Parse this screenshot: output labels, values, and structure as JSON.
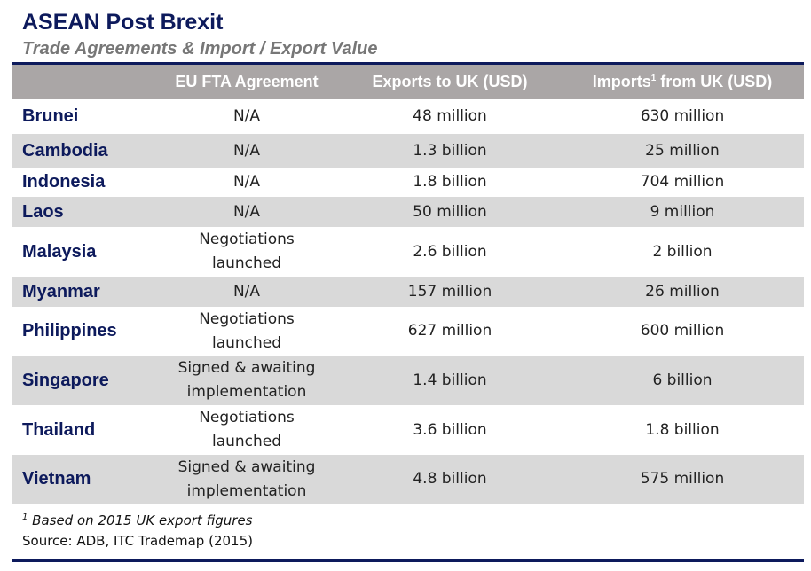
{
  "title": "ASEAN Post Brexit",
  "subtitle": "Trade Agreements & Import / Export Value",
  "columns": {
    "country": "",
    "fta": "EU FTA Agreement",
    "exports": "Exports to UK (USD)",
    "imports_pre": "Imports",
    "imports_sup": "1",
    "imports_post": " from UK (USD)"
  },
  "rows": [
    {
      "country": "Brunei",
      "fta": "N/A",
      "exports": "48 million",
      "imports": "630 million"
    },
    {
      "country": "Cambodia",
      "fta": "N/A",
      "exports": "1.3 billion",
      "imports": "25 million"
    },
    {
      "country": "Indonesia",
      "fta": "N/A",
      "exports": "1.8 billion",
      "imports": "704 million"
    },
    {
      "country": "Laos",
      "fta": "N/A",
      "exports": "50 million",
      "imports": "9 million"
    },
    {
      "country": "Malaysia",
      "fta": "Negotiations launched",
      "exports": "2.6 billion",
      "imports": "2 billion"
    },
    {
      "country": "Myanmar",
      "fta": "N/A",
      "exports": "157 million",
      "imports": "26 million"
    },
    {
      "country": "Philippines",
      "fta": "Negotiations launched",
      "exports": "627 million",
      "imports": "600 million"
    },
    {
      "country": "Singapore",
      "fta": "Signed & awaiting implementation",
      "exports": "1.4 billion",
      "imports": "6 billion"
    },
    {
      "country": "Thailand",
      "fta": "Negotiations launched",
      "exports": "3.6 billion",
      "imports": "1.8 billion"
    },
    {
      "country": "Vietnam",
      "fta": "Signed & awaiting implementation",
      "exports": "4.8 billion",
      "imports": "575 million"
    }
  ],
  "footnote": {
    "marker": "1",
    "text": "Based on 2015 UK export figures"
  },
  "source": "Source: ADB, ITC Trademap (2015)",
  "colors": {
    "navy": "#0d1a5c",
    "header_bg": "#aaa6a6",
    "stripe": "#d9d9d9",
    "subtitle": "#777777"
  }
}
